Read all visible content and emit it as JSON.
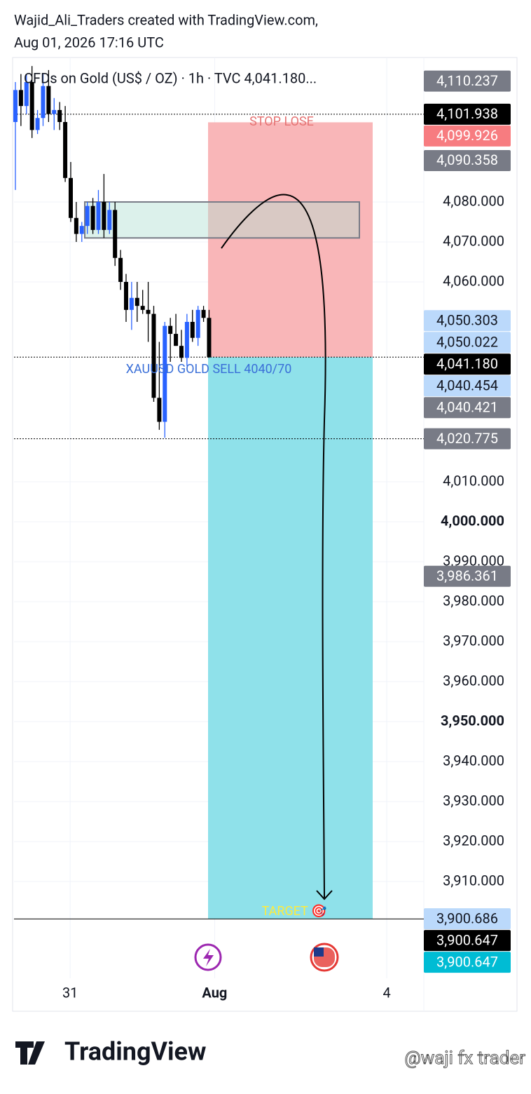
{
  "header": {
    "line1": "Wajid_Ali_Traders created with TradingView.com,",
    "line2": "Aug 01, 2026 17:16 UTC"
  },
  "footer": {
    "logo": "TradingView",
    "watermark": "@waji fx trader"
  },
  "chart_data": {
    "type": "candlestick",
    "title": "CFDs on Gold (US$ / OZ) · 1h · TVC  4,041.180...",
    "x": [
      0,
      1,
      2,
      3,
      4,
      5,
      6,
      7,
      8,
      9,
      10,
      11,
      12,
      13,
      14,
      15,
      16,
      17,
      18,
      19,
      20,
      21,
      22,
      23,
      24,
      25,
      26,
      27,
      28,
      29,
      30,
      31,
      32,
      33,
      34,
      35
    ],
    "open": [
      4100,
      4108,
      4104,
      4110,
      4098,
      4101,
      4109,
      4102,
      4103,
      4100,
      4086,
      4076,
      4072,
      4074,
      4079,
      4073,
      4080,
      4073,
      4078,
      4066,
      4060,
      4053,
      4056,
      4054,
      4053,
      4052,
      4031,
      4025,
      4049,
      4047,
      4044,
      4041,
      4050,
      4046,
      4053,
      4051
    ],
    "high": [
      4110,
      4112,
      4112,
      4114,
      4103,
      4112,
      4113,
      4106,
      4105,
      4104,
      4090,
      4080,
      4075,
      4080,
      4081,
      4083,
      4087,
      4080,
      4080,
      4068,
      4062,
      4060,
      4060,
      4058,
      4060,
      4054,
      4045,
      4050,
      4051,
      4052,
      4048,
      4052,
      4053,
      4054,
      4054,
      4053
    ],
    "low": [
      4083,
      4099,
      4102,
      4096,
      4097,
      4099,
      4100,
      4098,
      4098,
      4085,
      4075,
      4070,
      4070,
      4072,
      4072,
      4072,
      4071,
      4072,
      4064,
      4058,
      4050,
      4048,
      4050,
      4052,
      4045,
      4030,
      4023,
      4021,
      4040,
      4044,
      4040,
      4039,
      4045,
      4044,
      4050,
      4041
    ],
    "close": [
      4108,
      4104,
      4110,
      4098,
      4101,
      4109,
      4102,
      4103,
      4100,
      4086,
      4076,
      4072,
      4074,
      4079,
      4073,
      4080,
      4073,
      4078,
      4066,
      4060,
      4053,
      4056,
      4054,
      4053,
      4052,
      4031,
      4025,
      4049,
      4047,
      4044,
      4041,
      4050,
      4046,
      4053,
      4051,
      4041.18
    ],
    "up_color": "#2962ff",
    "down_color": "#000000",
    "xlim": [
      -0.25,
      73.8
    ],
    "xticks": [
      {
        "value": 9.9,
        "label": "31"
      },
      {
        "value": 36.0,
        "label": "Aug",
        "bold": true
      },
      {
        "value": 67.1,
        "label": "4"
      }
    ],
    "ylim": [
      3885.79,
      4115.61
    ],
    "yticks": [
      {
        "value": 4080,
        "label": "4,080.000"
      },
      {
        "value": 4070,
        "label": "4,070.000"
      },
      {
        "value": 4060,
        "label": "4,060.000"
      },
      {
        "value": 4010,
        "label": "4,010.000"
      },
      {
        "value": 4000,
        "label": "4,000.000",
        "bold": true
      },
      {
        "value": 3990,
        "label": "3,990.000"
      },
      {
        "value": 3980,
        "label": "3,980.000"
      },
      {
        "value": 3970,
        "label": "3,970.000"
      },
      {
        "value": 3960,
        "label": "3,960.000"
      },
      {
        "value": 3950,
        "label": "3,950.000",
        "bold": true
      },
      {
        "value": 3940,
        "label": "3,940.000"
      },
      {
        "value": 3930,
        "label": "3,930.000"
      },
      {
        "value": 3920,
        "label": "3,920.000"
      },
      {
        "value": 3910,
        "label": "3,910.000"
      }
    ],
    "grid": true,
    "price_badges": [
      {
        "value": 4110.237,
        "label": "4,110.237",
        "color": "#787b86"
      },
      {
        "value": 4101.938,
        "label": "4,101.938",
        "color": "#000000"
      },
      {
        "value": 4099.926,
        "label": "4,099.926",
        "color": "#f77c80"
      },
      {
        "value": 4090.358,
        "label": "4,090.358",
        "color": "#787b86"
      },
      {
        "value": 4050.303,
        "label": "4,050.303",
        "color": "#bbd9fb"
      },
      {
        "value": 4050.022,
        "label": "4,050.022",
        "color": "#bbd9fb"
      },
      {
        "value": 4041.18,
        "label": "4,041.180",
        "color": "#000000"
      },
      {
        "value": 4040.454,
        "label": "4,040.454",
        "color": "#bbd9fb"
      },
      {
        "value": 4040.421,
        "label": "4,040.421",
        "color": "#787b86"
      },
      {
        "value": 4020.775,
        "label": "4,020.775",
        "color": "#787b86"
      },
      {
        "value": 3986.361,
        "label": "3,986.361",
        "color": "#787b86"
      },
      {
        "value": 3900.686,
        "label": "3,900.686",
        "color": "#bbd9fb"
      },
      {
        "value": 3900.647,
        "label": "3,900.647",
        "color": "#000000"
      },
      {
        "value": 3900.647,
        "label": "3,900.647",
        "color": "#00bcd4"
      }
    ],
    "position": {
      "stop": 4099.926,
      "entry": 4041.18,
      "target": 3900.647,
      "stop_color": "#f9b6b8",
      "target_color": "#8fe1ea"
    },
    "zone": {
      "high": 4080,
      "low": 4071
    },
    "annotations": {
      "stop": "STOP LOSE",
      "entry": "XAUUSD GOLD SELL 4040/70",
      "target": "TARGET 🎯"
    }
  }
}
